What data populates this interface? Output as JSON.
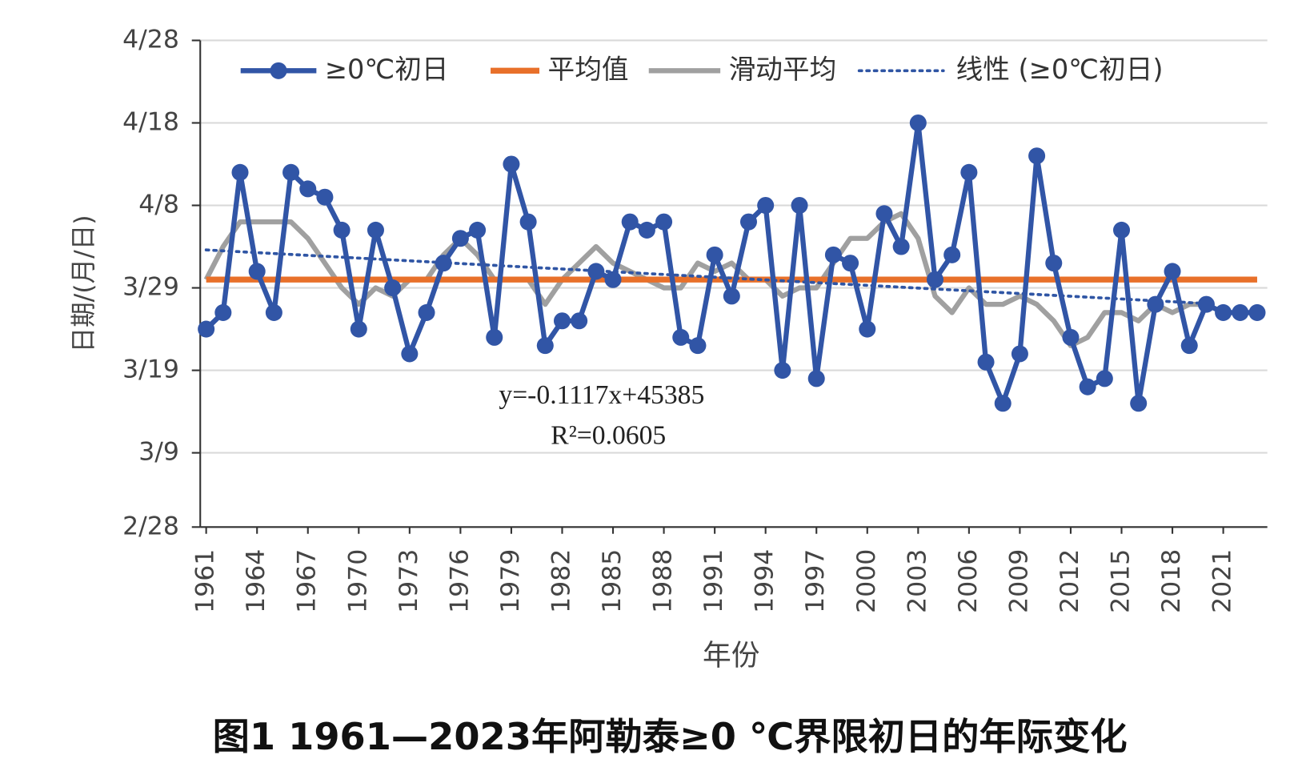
{
  "chart_data": {
    "type": "line",
    "title": "图1 1961—2023年阿勒泰≥0 ℃界限初日的年际变化",
    "x_label": "年份",
    "y_label": "日期/(月/日)",
    "x": [
      1961,
      1962,
      1963,
      1964,
      1965,
      1966,
      1967,
      1968,
      1969,
      1970,
      1971,
      1972,
      1973,
      1974,
      1975,
      1976,
      1977,
      1978,
      1979,
      1980,
      1981,
      1982,
      1983,
      1984,
      1985,
      1986,
      1987,
      1988,
      1989,
      1990,
      1991,
      1992,
      1993,
      1994,
      1995,
      1996,
      1997,
      1998,
      1999,
      2000,
      2001,
      2002,
      2003,
      2004,
      2005,
      2006,
      2007,
      2008,
      2009,
      2010,
      2011,
      2012,
      2013,
      2014,
      2015,
      2016,
      2017,
      2018,
      2019,
      2020,
      2021,
      2022,
      2023
    ],
    "series": [
      {
        "name": "≥0℃初日",
        "color": "#3155a6",
        "style": "marker",
        "values": [
          83,
          85,
          102,
          90,
          85,
          102,
          100,
          99,
          95,
          83,
          95,
          88,
          80,
          85,
          91,
          94,
          95,
          82,
          103,
          96,
          81,
          84,
          84,
          90,
          89,
          96,
          95,
          96,
          82,
          81,
          92,
          87,
          96,
          98,
          78,
          98,
          77,
          92,
          91,
          83,
          97,
          93,
          108,
          89,
          92,
          102,
          79,
          74,
          80,
          104,
          91,
          82,
          76,
          77,
          95,
          74,
          86,
          90,
          81,
          86,
          85,
          85,
          85
        ]
      },
      {
        "name": "平均值",
        "color": "#e8702a",
        "style": "thick",
        "values": [
          89,
          89,
          89,
          89,
          89,
          89,
          89,
          89,
          89,
          89,
          89,
          89,
          89,
          89,
          89,
          89,
          89,
          89,
          89,
          89,
          89,
          89,
          89,
          89,
          89,
          89,
          89,
          89,
          89,
          89,
          89,
          89,
          89,
          89,
          89,
          89,
          89,
          89,
          89,
          89,
          89,
          89,
          89,
          89,
          89,
          89,
          89,
          89,
          89,
          89,
          89,
          89,
          89,
          89,
          89,
          89,
          89,
          89,
          89,
          89,
          89,
          89,
          89
        ]
      },
      {
        "name": "滑动平均",
        "color": "#a0a0a0",
        "style": "smooth",
        "values": [
          89,
          93,
          96,
          96,
          96,
          96,
          94,
          91,
          88,
          86,
          88,
          87,
          89,
          89,
          92,
          94,
          92,
          89,
          89,
          89,
          86,
          89,
          91,
          93,
          91,
          90,
          89,
          88,
          88,
          91,
          90,
          91,
          89,
          89,
          87,
          88,
          88,
          91,
          94,
          94,
          96,
          97,
          94,
          87,
          85,
          88,
          86,
          86,
          87,
          86,
          84,
          81,
          82,
          85,
          85,
          84,
          86,
          85,
          86,
          86,
          null,
          null,
          null
        ]
      },
      {
        "name": "线性 (≥0℃初日)",
        "color": "#2f55a4",
        "style": "dotted",
        "x": [
          1961,
          2020
        ],
        "values": [
          92.6,
          86.1
        ]
      }
    ],
    "annotations": [
      "y=-0.1117x+45385",
      "R²=0.0605"
    ],
    "xlim": [
      1960.65,
      2023.6
    ],
    "xticks": [
      1961,
      1964,
      1967,
      1970,
      1973,
      1976,
      1979,
      1982,
      1985,
      1988,
      1991,
      1994,
      1997,
      2000,
      2003,
      2006,
      2009,
      2012,
      2015,
      2018,
      2021
    ],
    "ylim": [
      59,
      118
    ],
    "yticks": [
      {
        "value": 59,
        "label": "2/28"
      },
      {
        "value": 68,
        "label": "3/9"
      },
      {
        "value": 78,
        "label": "3/19"
      },
      {
        "value": 88,
        "label": "3/29"
      },
      {
        "value": 98,
        "label": "4/8"
      },
      {
        "value": 108,
        "label": "4/18"
      },
      {
        "value": 118,
        "label": "4/28"
      }
    ],
    "grid": true,
    "legend": "top"
  }
}
